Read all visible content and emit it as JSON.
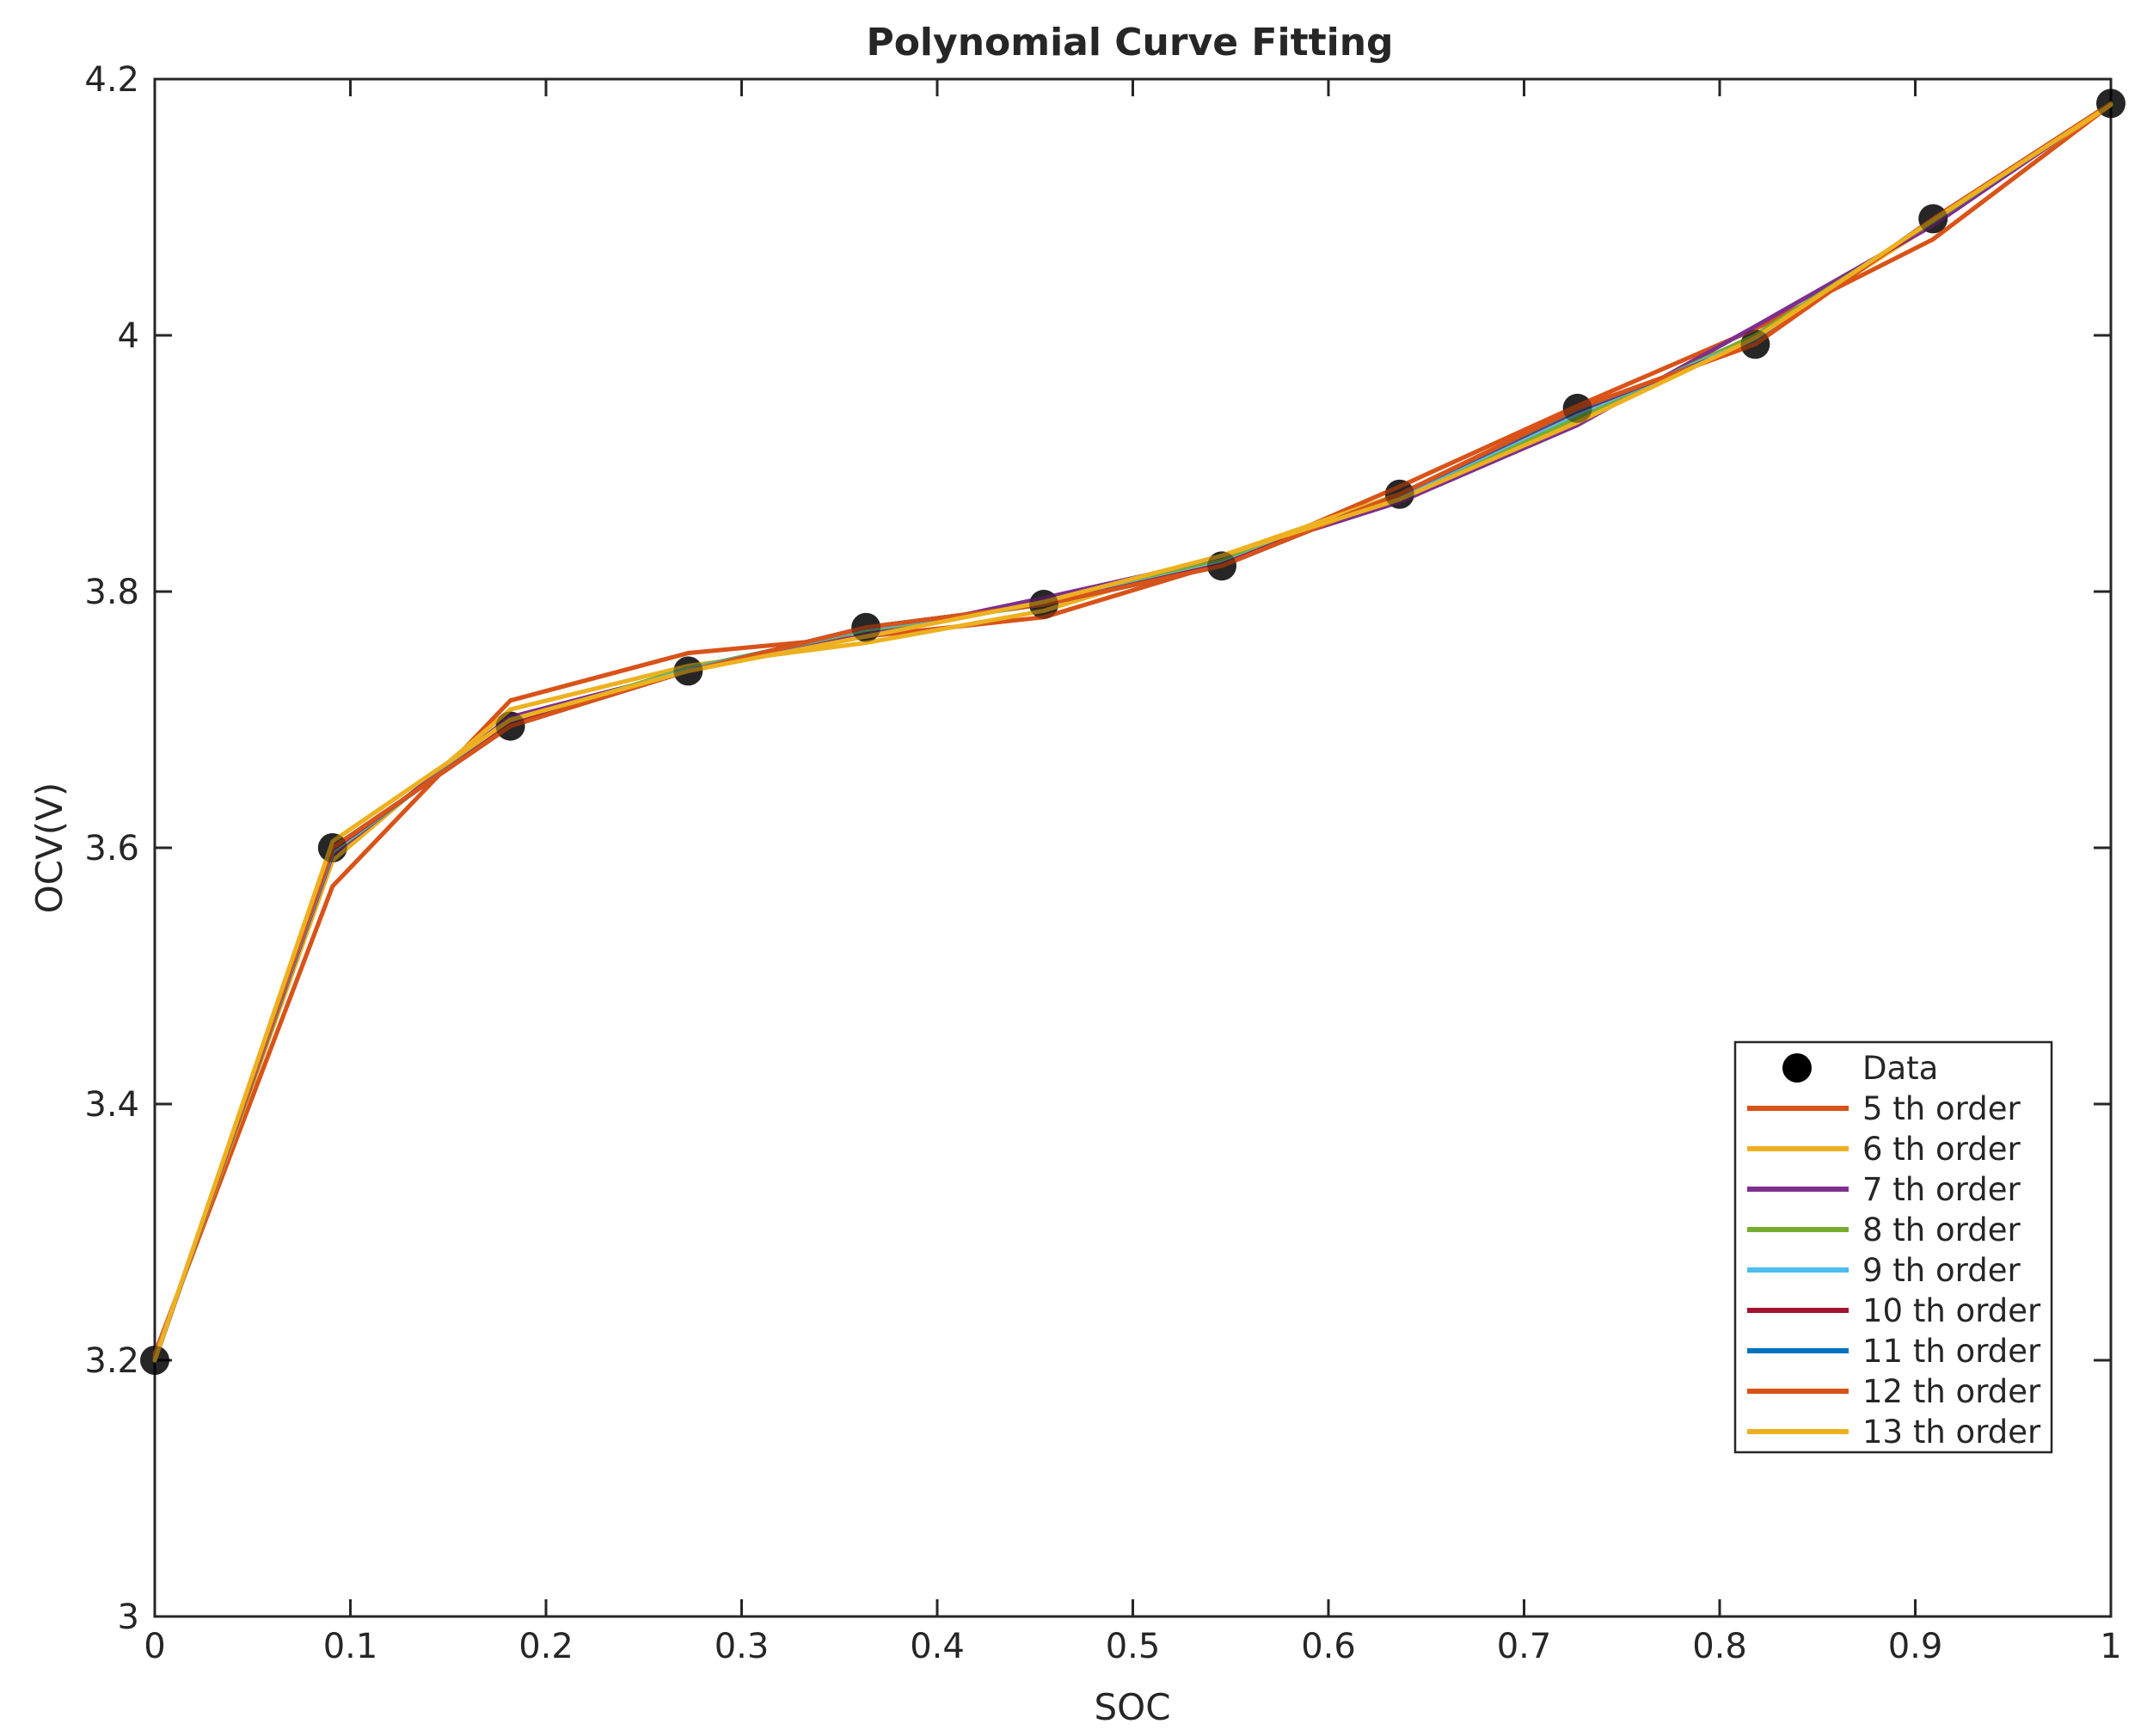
{
  "chart_data": {
    "type": "line",
    "title": "Polynomial Curve Fitting",
    "xlabel": "SOC",
    "ylabel": "OCV(V)",
    "xlim": [
      0,
      1
    ],
    "ylim": [
      3,
      4.2
    ],
    "xticks": [
      "0",
      "0.1",
      "0.2",
      "0.3",
      "0.4",
      "0.5",
      "0.6",
      "0.7",
      "0.8",
      "0.9",
      "1"
    ],
    "yticks": [
      "3",
      "3.2",
      "3.4",
      "3.6",
      "3.8",
      "4",
      "4.2"
    ],
    "grid": false,
    "legend_position": "lower-right",
    "x": [
      0,
      0.0909,
      0.1818,
      0.2727,
      0.3636,
      0.4545,
      0.5455,
      0.6364,
      0.7273,
      0.8182,
      0.9091,
      1.0
    ],
    "data_series": {
      "name": "Data",
      "color": "#000000",
      "marker": "circle",
      "values": [
        3.2,
        3.6,
        3.695,
        3.738,
        3.772,
        3.79,
        3.82,
        3.876,
        3.943,
        3.993,
        4.091,
        4.181
      ]
    },
    "series": [
      {
        "name": "5 th order",
        "color": "#D95319",
        "values": [
          3.205,
          3.57,
          3.715,
          3.752,
          3.765,
          3.78,
          3.822,
          3.882,
          3.945,
          4.005,
          4.075,
          4.18
        ]
      },
      {
        "name": "6 th order",
        "color": "#EDB120",
        "values": [
          3.202,
          3.59,
          3.708,
          3.742,
          3.76,
          3.785,
          3.828,
          3.876,
          3.934,
          3.998,
          4.087,
          4.18
        ]
      },
      {
        "name": "7 th order",
        "color": "#7E2F8E",
        "values": [
          3.201,
          3.595,
          3.702,
          3.738,
          3.766,
          3.795,
          3.826,
          3.87,
          3.93,
          4.007,
          4.086,
          4.181
        ]
      },
      {
        "name": "8 th order",
        "color": "#77AC30",
        "values": [
          3.2,
          3.597,
          3.698,
          3.74,
          3.77,
          3.79,
          3.824,
          3.874,
          3.936,
          4.0,
          4.089,
          4.181
        ]
      },
      {
        "name": "9 th order",
        "color": "#4DBEEE",
        "values": [
          3.2,
          3.598,
          3.697,
          3.739,
          3.771,
          3.79,
          3.822,
          3.875,
          3.939,
          3.997,
          4.09,
          4.181
        ]
      },
      {
        "name": "10 th order",
        "color": "#A2142F",
        "values": [
          3.2,
          3.599,
          3.696,
          3.738,
          3.772,
          3.79,
          3.821,
          3.876,
          3.941,
          3.995,
          4.09,
          4.181
        ]
      },
      {
        "name": "11 th order",
        "color": "#0072BD",
        "values": [
          3.2,
          3.6,
          3.695,
          3.738,
          3.772,
          3.79,
          3.82,
          3.876,
          3.942,
          3.994,
          4.091,
          4.181
        ]
      },
      {
        "name": "12 th order",
        "color": "#D95319",
        "values": [
          3.2,
          3.6,
          3.695,
          3.738,
          3.772,
          3.79,
          3.82,
          3.876,
          3.943,
          3.993,
          4.091,
          4.181
        ]
      },
      {
        "name": "13 th order",
        "color": "#EDB120",
        "values": [
          3.2,
          3.605,
          3.7,
          3.738,
          3.765,
          3.792,
          3.828,
          3.872,
          3.932,
          3.998,
          4.09,
          4.18
        ]
      }
    ]
  }
}
